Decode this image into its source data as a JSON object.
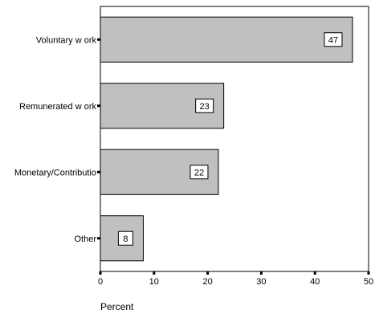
{
  "chart_data": {
    "type": "bar",
    "orientation": "horizontal",
    "categories": [
      "Voluntary w ork",
      "Remunerated w ork",
      "Monetary/Contributio",
      "Other"
    ],
    "values": [
      47,
      23,
      22,
      8
    ],
    "data_labels": [
      "47",
      "23",
      "22",
      "8"
    ],
    "xlabel": "Percent",
    "xlim": [
      0,
      50
    ],
    "xticks": [
      0,
      10,
      20,
      30,
      40,
      50
    ],
    "xtick_labels": [
      "0",
      "10",
      "20",
      "30",
      "40",
      "50"
    ],
    "grid": false,
    "bar_color": "#c0c0c0",
    "bar_edge_color": "#000000"
  }
}
